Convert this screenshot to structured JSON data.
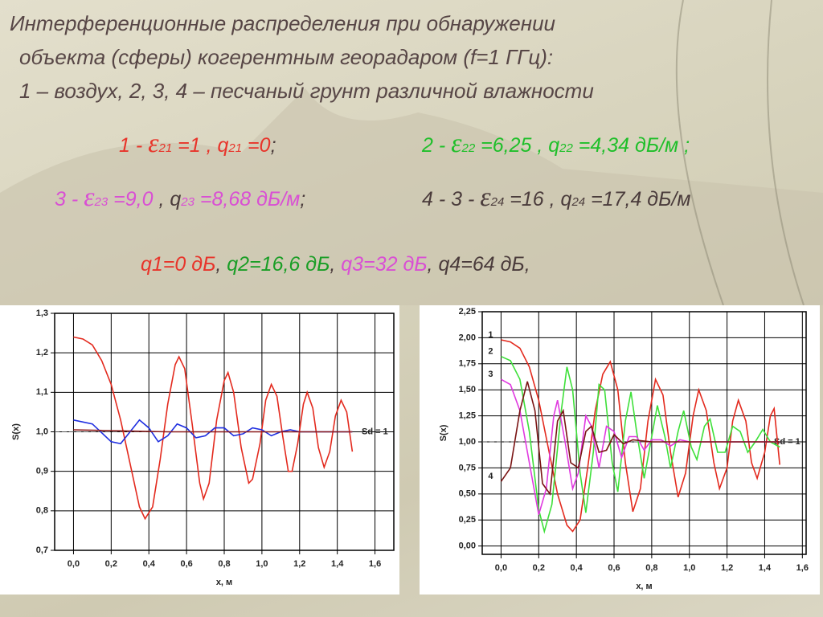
{
  "title_lines": [
    "Интерференционные распределения при обнаружении",
    "объекта (сферы) когерентным георадаром (f=1 ГГц):",
    "1 – воздух,  2, 3, 4 – песчаный грунт различной влажности"
  ],
  "params": [
    {
      "segments": [
        {
          "text": "1 - ",
          "color": "#e8342a"
        },
        {
          "text": "ε",
          "color": "#e8342a",
          "symbol": true
        },
        {
          "text": "21",
          "color": "#e8342a",
          "sub": true
        },
        {
          "text": " =1 , q",
          "color": "#e8342a"
        },
        {
          "text": "21",
          "color": "#e8342a",
          "sub": true
        },
        {
          "text": " =0",
          "color": "#e8342a"
        },
        {
          "text": ";",
          "color": "#4a3b3b"
        }
      ]
    },
    {
      "segments": [
        {
          "text": "2 - ",
          "color": "#1fbf2a"
        },
        {
          "text": "ε",
          "color": "#1fbf2a",
          "symbol": true
        },
        {
          "text": "22",
          "color": "#1fbf2a",
          "sub": true
        },
        {
          "text": " =6,25 , q",
          "color": "#1fbf2a"
        },
        {
          "text": "22",
          "color": "#1fbf2a",
          "sub": true
        },
        {
          "text": " =4,34 дБ/м ;",
          "color": "#1fbf2a"
        }
      ]
    },
    {
      "segments": [
        {
          "text": "3 - ",
          "color": "#d94fd4"
        },
        {
          "text": "ε",
          "color": "#d94fd4",
          "symbol": true
        },
        {
          "text": "23",
          "color": "#d94fd4",
          "sub": true
        },
        {
          "text": " =9,0 ",
          "color": "#d94fd4"
        },
        {
          "text": ", q",
          "color": "#4a3b3b"
        },
        {
          "text": "23",
          "color": "#d94fd4",
          "sub": true
        },
        {
          "text": " =8,68 дБ/м",
          "color": "#d94fd4"
        },
        {
          "text": ";",
          "color": "#4a3b3b"
        }
      ]
    },
    {
      "segments": [
        {
          "text": "4 - 3 - ",
          "color": "#4a3b3b"
        },
        {
          "text": "ε",
          "color": "#4a3b3b",
          "symbol": true
        },
        {
          "text": "24",
          "color": "#4a3b3b",
          "sub": true
        },
        {
          "text": " =16 , q",
          "color": "#4a3b3b"
        },
        {
          "text": "24",
          "color": "#4a3b3b",
          "sub": true
        },
        {
          "text": " =17,4 дБ/м",
          "color": "#4a3b3b"
        }
      ]
    },
    {
      "segments": [
        {
          "text": "q1=0 дБ",
          "color": "#e8342a"
        },
        {
          "text": ", ",
          "color": "#4a3b3b"
        },
        {
          "text": "q2=16,6 дБ",
          "color": "#1a9e26"
        },
        {
          "text": ", ",
          "color": "#4a3b3b"
        },
        {
          "text": "q3=32 дБ",
          "color": "#d94fd4"
        },
        {
          "text": ", q4=64 дБ,",
          "color": "#4a3b3b"
        }
      ]
    }
  ],
  "chart_data": [
    {
      "type": "line",
      "xlabel": "x, м",
      "ylabel": "S(x)",
      "grid": true,
      "xlim": [
        -0.1,
        1.7
      ],
      "ylim": [
        0.7,
        1.3
      ],
      "xticks": [
        {
          "value": 0,
          "label": "0,0"
        },
        {
          "value": 0.2,
          "label": "0,2"
        },
        {
          "value": 0.4,
          "label": "0,4"
        },
        {
          "value": 0.6,
          "label": "0,6"
        },
        {
          "value": 0.8,
          "label": "0,8"
        },
        {
          "value": 1.0,
          "label": "1,0"
        },
        {
          "value": 1.2,
          "label": "1,2"
        },
        {
          "value": 1.4,
          "label": "1,4"
        },
        {
          "value": 1.6,
          "label": "1,6"
        }
      ],
      "yticks": [
        {
          "value": 0.7,
          "label": "0,7"
        },
        {
          "value": 0.8,
          "label": "0,8"
        },
        {
          "value": 0.9,
          "label": "0,9"
        },
        {
          "value": 1.0,
          "label": "1,0"
        },
        {
          "value": 1.1,
          "label": "1,1"
        },
        {
          "value": 1.2,
          "label": "1,2"
        },
        {
          "value": 1.3,
          "label": "1,3"
        }
      ],
      "ref_line": {
        "value": 1,
        "label": "Sd = 1"
      },
      "series": [
        {
          "color": "#e32a1e",
          "x": [
            0,
            0.05,
            0.1,
            0.15,
            0.2,
            0.25,
            0.3,
            0.35,
            0.38,
            0.42,
            0.46,
            0.5,
            0.54,
            0.56,
            0.59,
            0.63,
            0.67,
            0.69,
            0.72,
            0.76,
            0.8,
            0.82,
            0.85,
            0.89,
            0.93,
            0.95,
            0.99,
            1.02,
            1.05,
            1.08,
            1.11,
            1.14,
            1.16,
            1.19,
            1.22,
            1.24,
            1.27,
            1.3,
            1.33,
            1.36,
            1.39,
            1.42,
            1.45,
            1.48
          ],
          "values": [
            1.24,
            1.235,
            1.22,
            1.18,
            1.12,
            1.03,
            0.92,
            0.81,
            0.78,
            0.81,
            0.93,
            1.07,
            1.17,
            1.19,
            1.16,
            1.02,
            0.87,
            0.83,
            0.87,
            1.03,
            1.13,
            1.15,
            1.1,
            0.96,
            0.87,
            0.88,
            0.97,
            1.08,
            1.12,
            1.09,
            0.99,
            0.9,
            0.9,
            0.97,
            1.07,
            1.1,
            1.06,
            0.96,
            0.91,
            0.95,
            1.04,
            1.08,
            1.05,
            0.95
          ]
        },
        {
          "color": "#1e2ee0",
          "x": [
            0,
            0.1,
            0.2,
            0.25,
            0.3,
            0.35,
            0.4,
            0.45,
            0.5,
            0.55,
            0.6,
            0.65,
            0.7,
            0.75,
            0.8,
            0.85,
            0.9,
            0.95,
            1.0,
            1.05,
            1.1,
            1.15,
            1.2,
            1.3,
            1.4,
            1.48
          ],
          "values": [
            1.03,
            1.02,
            0.975,
            0.97,
            1.0,
            1.03,
            1.01,
            0.975,
            0.99,
            1.02,
            1.01,
            0.985,
            0.99,
            1.01,
            1.01,
            0.99,
            0.995,
            1.01,
            1.005,
            0.99,
            1.0,
            1.005,
            1.0,
            1.0,
            1.0,
            1.0
          ]
        },
        {
          "color": "#8b1a1a",
          "x": [
            0,
            0.5,
            1.0,
            1.48
          ],
          "values": [
            1.005,
            1.0,
            1.0,
            1.0
          ]
        }
      ]
    },
    {
      "type": "line",
      "xlabel": "x, м",
      "ylabel": "S(x)",
      "grid": true,
      "xlim": [
        -0.1,
        1.62
      ],
      "ylim": [
        -0.08,
        2.25
      ],
      "xticks": [
        {
          "value": 0,
          "label": "0,0"
        },
        {
          "value": 0.2,
          "label": "0,2"
        },
        {
          "value": 0.4,
          "label": "0,4"
        },
        {
          "value": 0.6,
          "label": "0,6"
        },
        {
          "value": 0.8,
          "label": "0,8"
        },
        {
          "value": 1.0,
          "label": "1,0"
        },
        {
          "value": 1.2,
          "label": "1,2"
        },
        {
          "value": 1.4,
          "label": "1,4"
        },
        {
          "value": 1.6,
          "label": "1,6"
        }
      ],
      "yticks": [
        {
          "value": 0,
          "label": "0,00"
        },
        {
          "value": 0.25,
          "label": "0,25"
        },
        {
          "value": 0.5,
          "label": "0,50"
        },
        {
          "value": 0.75,
          "label": "0,75"
        },
        {
          "value": 1.0,
          "label": "1,00"
        },
        {
          "value": 1.25,
          "label": "1,25"
        },
        {
          "value": 1.5,
          "label": "1,50"
        },
        {
          "value": 1.75,
          "label": "1,75"
        },
        {
          "value": 2.0,
          "label": "2,00"
        },
        {
          "value": 2.25,
          "label": "2,25"
        }
      ],
      "ref_line": {
        "value": 1,
        "label": "Sd = 1"
      },
      "series": [
        {
          "name": "1",
          "color": "#e32a1e",
          "x": [
            0,
            0.05,
            0.1,
            0.15,
            0.2,
            0.25,
            0.3,
            0.35,
            0.38,
            0.42,
            0.46,
            0.5,
            0.54,
            0.58,
            0.62,
            0.66,
            0.7,
            0.74,
            0.78,
            0.82,
            0.86,
            0.9,
            0.94,
            0.98,
            1.02,
            1.05,
            1.09,
            1.13,
            1.16,
            1.2,
            1.23,
            1.26,
            1.3,
            1.33,
            1.36,
            1.4,
            1.43,
            1.45,
            1.48
          ],
          "values": [
            1.98,
            1.96,
            1.9,
            1.72,
            1.4,
            0.95,
            0.5,
            0.2,
            0.14,
            0.25,
            0.75,
            1.3,
            1.65,
            1.77,
            1.5,
            0.8,
            0.33,
            0.55,
            1.2,
            1.6,
            1.45,
            0.9,
            0.47,
            0.7,
            1.25,
            1.5,
            1.3,
            0.8,
            0.55,
            0.75,
            1.2,
            1.4,
            1.2,
            0.8,
            0.65,
            0.9,
            1.25,
            1.32,
            0.78
          ]
        },
        {
          "name": "2",
          "color": "#3ee03a",
          "x": [
            0,
            0.05,
            0.1,
            0.15,
            0.2,
            0.23,
            0.27,
            0.32,
            0.35,
            0.38,
            0.42,
            0.45,
            0.49,
            0.52,
            0.55,
            0.59,
            0.62,
            0.66,
            0.69,
            0.72,
            0.76,
            0.8,
            0.83,
            0.87,
            0.9,
            0.94,
            0.97,
            1.01,
            1.04,
            1.08,
            1.11,
            1.15,
            1.19,
            1.23,
            1.27,
            1.31,
            1.35,
            1.39,
            1.43,
            1.48
          ],
          "values": [
            1.82,
            1.78,
            1.6,
            1.1,
            0.35,
            0.14,
            0.4,
            1.3,
            1.72,
            1.5,
            0.7,
            0.32,
            0.9,
            1.55,
            1.5,
            0.8,
            0.52,
            1.2,
            1.48,
            1.1,
            0.65,
            1.05,
            1.35,
            1.05,
            0.75,
            1.1,
            1.3,
            0.95,
            0.83,
            1.15,
            1.22,
            0.9,
            0.9,
            1.15,
            1.1,
            0.9,
            1.0,
            1.12,
            1.0,
            0.95
          ]
        },
        {
          "name": "3",
          "color": "#e03ae0",
          "x": [
            0,
            0.05,
            0.1,
            0.15,
            0.2,
            0.24,
            0.28,
            0.3,
            0.34,
            0.38,
            0.41,
            0.45,
            0.48,
            0.52,
            0.56,
            0.6,
            0.64,
            0.68,
            0.72,
            0.76,
            0.8,
            0.85,
            0.9,
            0.95,
            1.0,
            1.2,
            1.48
          ],
          "values": [
            1.6,
            1.55,
            1.3,
            0.8,
            0.3,
            0.55,
            1.25,
            1.4,
            1.0,
            0.55,
            0.7,
            1.25,
            1.15,
            0.75,
            1.15,
            1.1,
            0.85,
            1.05,
            1.05,
            0.92,
            1.02,
            1.02,
            0.96,
            1.02,
            1.0,
            1.0,
            1.0
          ]
        },
        {
          "name": "4",
          "color": "#7a1414",
          "x": [
            0,
            0.05,
            0.1,
            0.14,
            0.18,
            0.22,
            0.26,
            0.3,
            0.33,
            0.37,
            0.41,
            0.45,
            0.48,
            0.52,
            0.56,
            0.6,
            0.65,
            0.7,
            0.8,
            1.0,
            1.48
          ],
          "values": [
            0.62,
            0.75,
            1.3,
            1.58,
            1.3,
            0.6,
            0.5,
            1.2,
            1.3,
            0.8,
            0.75,
            1.1,
            1.15,
            0.9,
            0.92,
            1.07,
            0.98,
            1.02,
            1.0,
            1.0,
            1.0
          ]
        }
      ]
    }
  ]
}
